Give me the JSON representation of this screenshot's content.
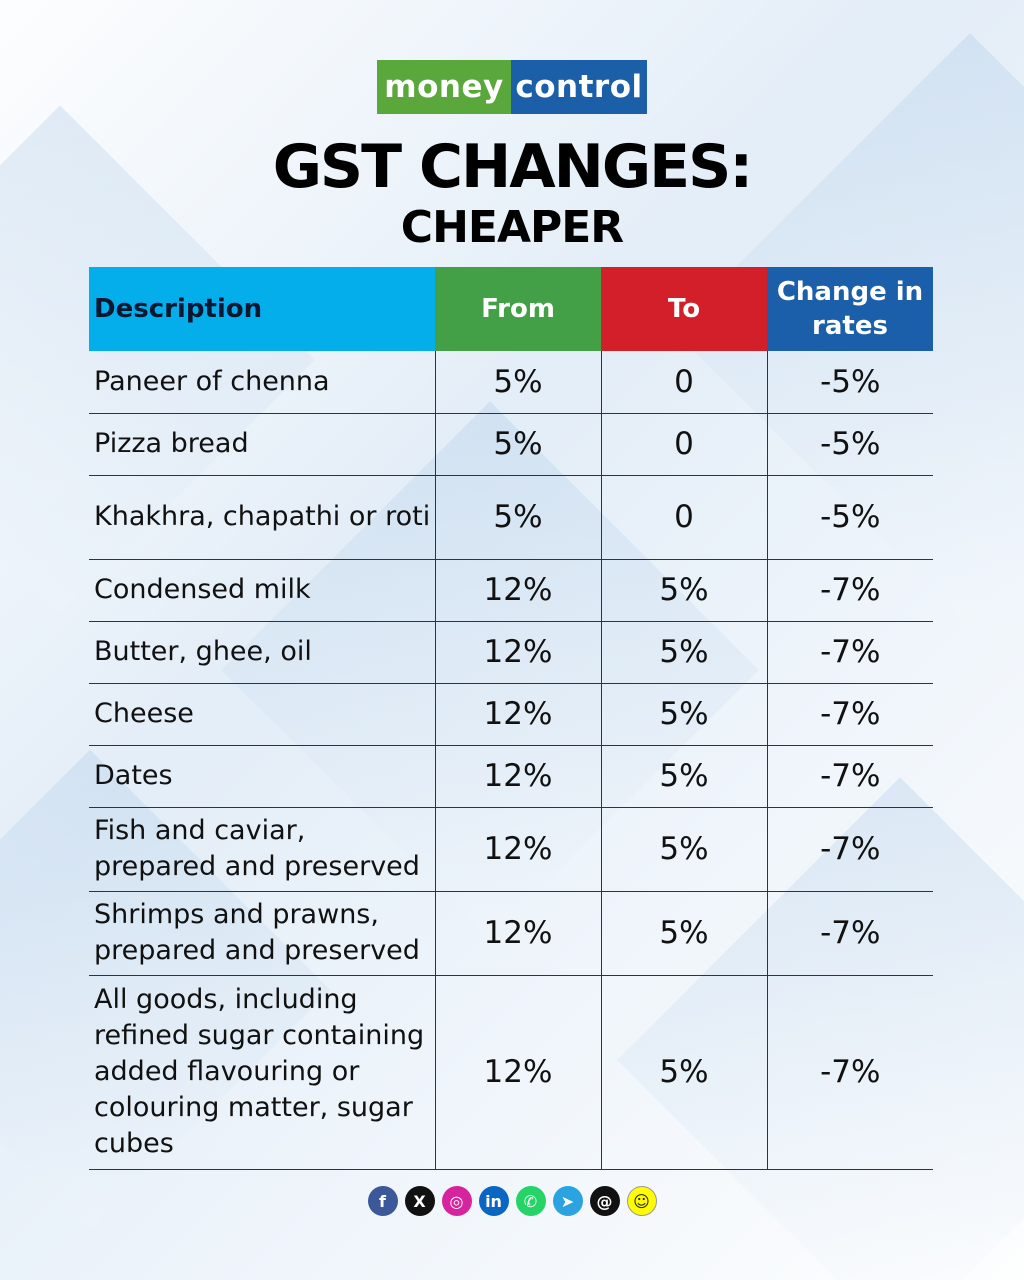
{
  "logo": {
    "left": "money",
    "right": "control"
  },
  "title": "GST CHANGES:",
  "subtitle": "CHEAPER",
  "chart_data": {
    "type": "table",
    "columns": [
      "Description",
      "From",
      "To",
      "Change in rates"
    ],
    "rows": [
      {
        "description": "Paneer of chenna",
        "from": "5%",
        "to": "0",
        "change": "-5%"
      },
      {
        "description": "Pizza bread",
        "from": "5%",
        "to": "0",
        "change": "-5%"
      },
      {
        "description": "Khakhra, chapathi or roti",
        "from": "5%",
        "to": "0",
        "change": "-5%"
      },
      {
        "description": "Condensed milk",
        "from": "12%",
        "to": "5%",
        "change": "-7%"
      },
      {
        "description": "Butter, ghee, oil",
        "from": "12%",
        "to": "5%",
        "change": "-7%"
      },
      {
        "description": "Cheese",
        "from": "12%",
        "to": "5%",
        "change": "-7%"
      },
      {
        "description": "Dates",
        "from": "12%",
        "to": "5%",
        "change": "-7%"
      },
      {
        "description": "Fish and caviar, prepared and preserved",
        "from": "12%",
        "to": "5%",
        "change": "-7%"
      },
      {
        "description": "Shrimps and prawns, prepared and preserved",
        "from": "12%",
        "to": "5%",
        "change": "-7%"
      },
      {
        "description": "All goods, including refined sugar containing added flavouring or colouring matter, sugar cubes",
        "from": "12%",
        "to": "5%",
        "change": "-7%"
      }
    ],
    "header_colors": [
      "#04aeea",
      "#43a047",
      "#d21f2a",
      "#1b5faa"
    ]
  },
  "social_icons": [
    {
      "name": "facebook-icon",
      "glyph": "f",
      "color": "#3b5998"
    },
    {
      "name": "x-icon",
      "glyph": "X",
      "color": "#111111"
    },
    {
      "name": "instagram-icon",
      "glyph": "◎",
      "color": "#d6249f"
    },
    {
      "name": "linkedin-icon",
      "glyph": "in",
      "color": "#0a66c2"
    },
    {
      "name": "whatsapp-icon",
      "glyph": "✆",
      "color": "#25d366"
    },
    {
      "name": "telegram-icon",
      "glyph": "➤",
      "color": "#2aa3e0"
    },
    {
      "name": "threads-icon",
      "glyph": "@",
      "color": "#111111"
    },
    {
      "name": "snapchat-icon",
      "glyph": "☺",
      "color": "#fffc00"
    }
  ]
}
